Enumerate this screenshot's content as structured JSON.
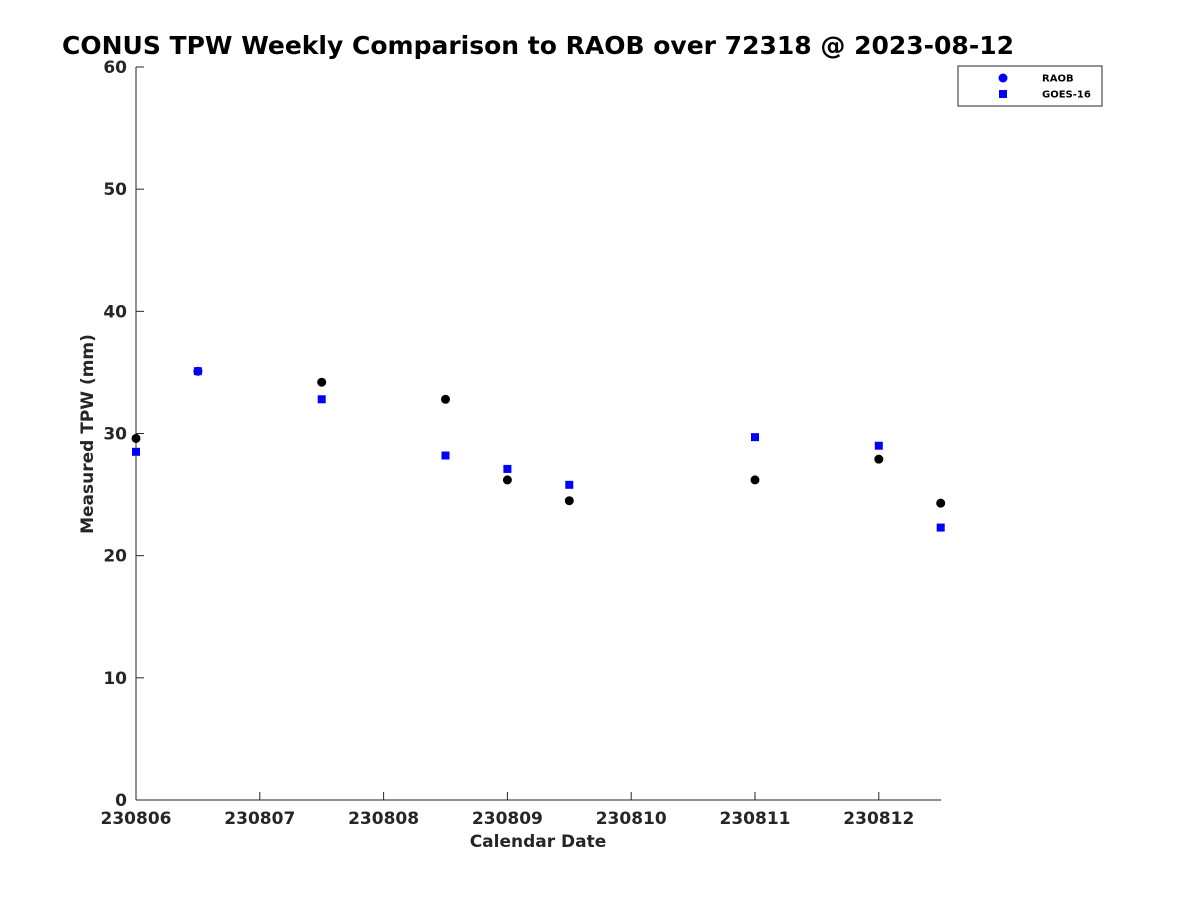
{
  "chart_data": {
    "type": "scatter",
    "title": "CONUS TPW Weekly Comparison to RAOB over 72318 @ 2023-08-12",
    "xlabel": "Calendar Date",
    "ylabel": "Measured TPW (mm)",
    "x_tick_labels": [
      "230806",
      "230807",
      "230808",
      "230809",
      "230810",
      "230811",
      "230812"
    ],
    "y_tick_labels": [
      "0",
      "10",
      "20",
      "30",
      "40",
      "50",
      "60"
    ],
    "ylim": [
      0,
      60
    ],
    "grid": false,
    "legend_position": "top-right",
    "series": [
      {
        "name": "RAOB",
        "marker": "circle",
        "color": "#000000",
        "legend_color": "#0000ff",
        "points": [
          {
            "x": "230806 00Z",
            "y": 29.6
          },
          {
            "x": "230806 12Z",
            "y": 35.1
          },
          {
            "x": "230807 12Z",
            "y": 34.2
          },
          {
            "x": "230808 12Z",
            "y": 32.8
          },
          {
            "x": "230809 00Z",
            "y": 26.2
          },
          {
            "x": "230809 12Z",
            "y": 24.5
          },
          {
            "x": "230811 00Z",
            "y": 26.2
          },
          {
            "x": "230812 00Z",
            "y": 27.9
          },
          {
            "x": "230812 12Z",
            "y": 24.3
          }
        ]
      },
      {
        "name": "GOES-16",
        "marker": "square",
        "color": "#0000ff",
        "points": [
          {
            "x": "230806 00Z",
            "y": 28.5
          },
          {
            "x": "230806 12Z",
            "y": 35.1
          },
          {
            "x": "230807 12Z",
            "y": 32.8
          },
          {
            "x": "230808 12Z",
            "y": 28.2
          },
          {
            "x": "230809 00Z",
            "y": 27.1
          },
          {
            "x": "230809 12Z",
            "y": 25.8
          },
          {
            "x": "230811 00Z",
            "y": 29.7
          },
          {
            "x": "230812 00Z",
            "y": 29.0
          },
          {
            "x": "230812 12Z",
            "y": 22.3
          }
        ]
      }
    ]
  }
}
